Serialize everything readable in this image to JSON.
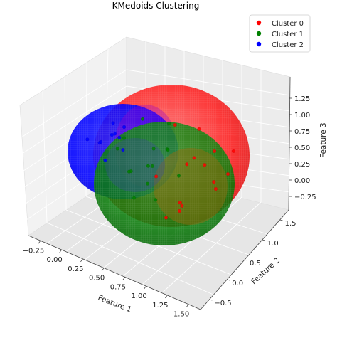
{
  "chart_data": {
    "type": "scatter",
    "title": "KMedoids Clustering",
    "xlabel": "Feature 1",
    "ylabel": "Feature 2",
    "zlabel": "Feature 3",
    "x_ticks": [
      "−0.25",
      "0.00",
      "0.25",
      "0.50",
      "0.75",
      "1.00",
      "1.25",
      "1.50"
    ],
    "y_ticks": [
      "−0.5",
      "0.0",
      "0.5",
      "1.0",
      "1.5"
    ],
    "z_ticks": [
      "−0.25",
      "0.00",
      "0.25",
      "0.50",
      "0.75",
      "1.00",
      "1.25"
    ],
    "xlim": [
      -0.4,
      1.6
    ],
    "ylim": [
      -0.7,
      1.7
    ],
    "zlim": [
      -0.4,
      1.4
    ],
    "legend_position": "top-right",
    "series": [
      {
        "name": "Cluster 0",
        "color": "#ff0000",
        "sphere": {
          "center": [
            0.85,
            0.55,
            0.55
          ],
          "radius": 0.8
        },
        "points": [
          [
            1.35,
            0.3,
            0.55
          ],
          [
            1.2,
            0.6,
            0.4
          ],
          [
            0.9,
            0.9,
            0.8
          ],
          [
            1.0,
            0.2,
            0.2
          ],
          [
            0.85,
            0.5,
            0.0
          ],
          [
            1.3,
            0.9,
            0.7
          ],
          [
            1.1,
            -0.1,
            0.35
          ],
          [
            0.75,
            0.6,
            0.95
          ],
          [
            0.95,
            0.45,
            0.6
          ],
          [
            1.15,
            1.1,
            0.2
          ],
          [
            0.7,
            0.2,
            0.45
          ],
          [
            1.25,
            0.5,
            0.9
          ],
          [
            0.9,
            0.0,
            0.1
          ],
          [
            1.05,
            0.7,
            0.5
          ],
          [
            0.8,
            1.0,
            0.3
          ]
        ]
      },
      {
        "name": "Cluster 1",
        "color": "#008000",
        "sphere": {
          "center": [
            0.45,
            0.45,
            0.35
          ],
          "radius": 0.75
        },
        "points": [
          [
            0.5,
            0.6,
            0.5
          ],
          [
            0.3,
            0.4,
            0.2
          ],
          [
            0.7,
            0.5,
            0.65
          ],
          [
            0.4,
            0.8,
            0.1
          ],
          [
            0.6,
            0.2,
            0.3
          ],
          [
            0.2,
            0.5,
            0.55
          ],
          [
            0.55,
            0.9,
            0.7
          ],
          [
            0.45,
            0.1,
            0.45
          ],
          [
            0.75,
            0.7,
            0.2
          ],
          [
            0.35,
            0.65,
            0.8
          ],
          [
            0.65,
            0.3,
            0.05
          ],
          [
            0.5,
            0.45,
            0.35
          ],
          [
            0.25,
            0.2,
            0.6
          ],
          [
            0.6,
            0.75,
            0.45
          ],
          [
            0.4,
            0.3,
            -0.05
          ]
        ]
      },
      {
        "name": "Cluster 2",
        "color": "#0000ff",
        "sphere": {
          "center": [
            0.1,
            0.35,
            0.55
          ],
          "radius": 0.55
        },
        "points": [
          [
            0.1,
            0.4,
            0.6
          ],
          [
            0.0,
            0.3,
            0.5
          ],
          [
            0.2,
            0.5,
            0.7
          ],
          [
            -0.1,
            0.2,
            0.55
          ],
          [
            0.15,
            0.1,
            0.45
          ],
          [
            0.05,
            0.55,
            0.65
          ],
          [
            0.25,
            0.35,
            0.5
          ],
          [
            -0.05,
            0.45,
            0.4
          ],
          [
            0.2,
            0.25,
            0.75
          ],
          [
            0.1,
            0.6,
            0.45
          ]
        ]
      }
    ]
  }
}
